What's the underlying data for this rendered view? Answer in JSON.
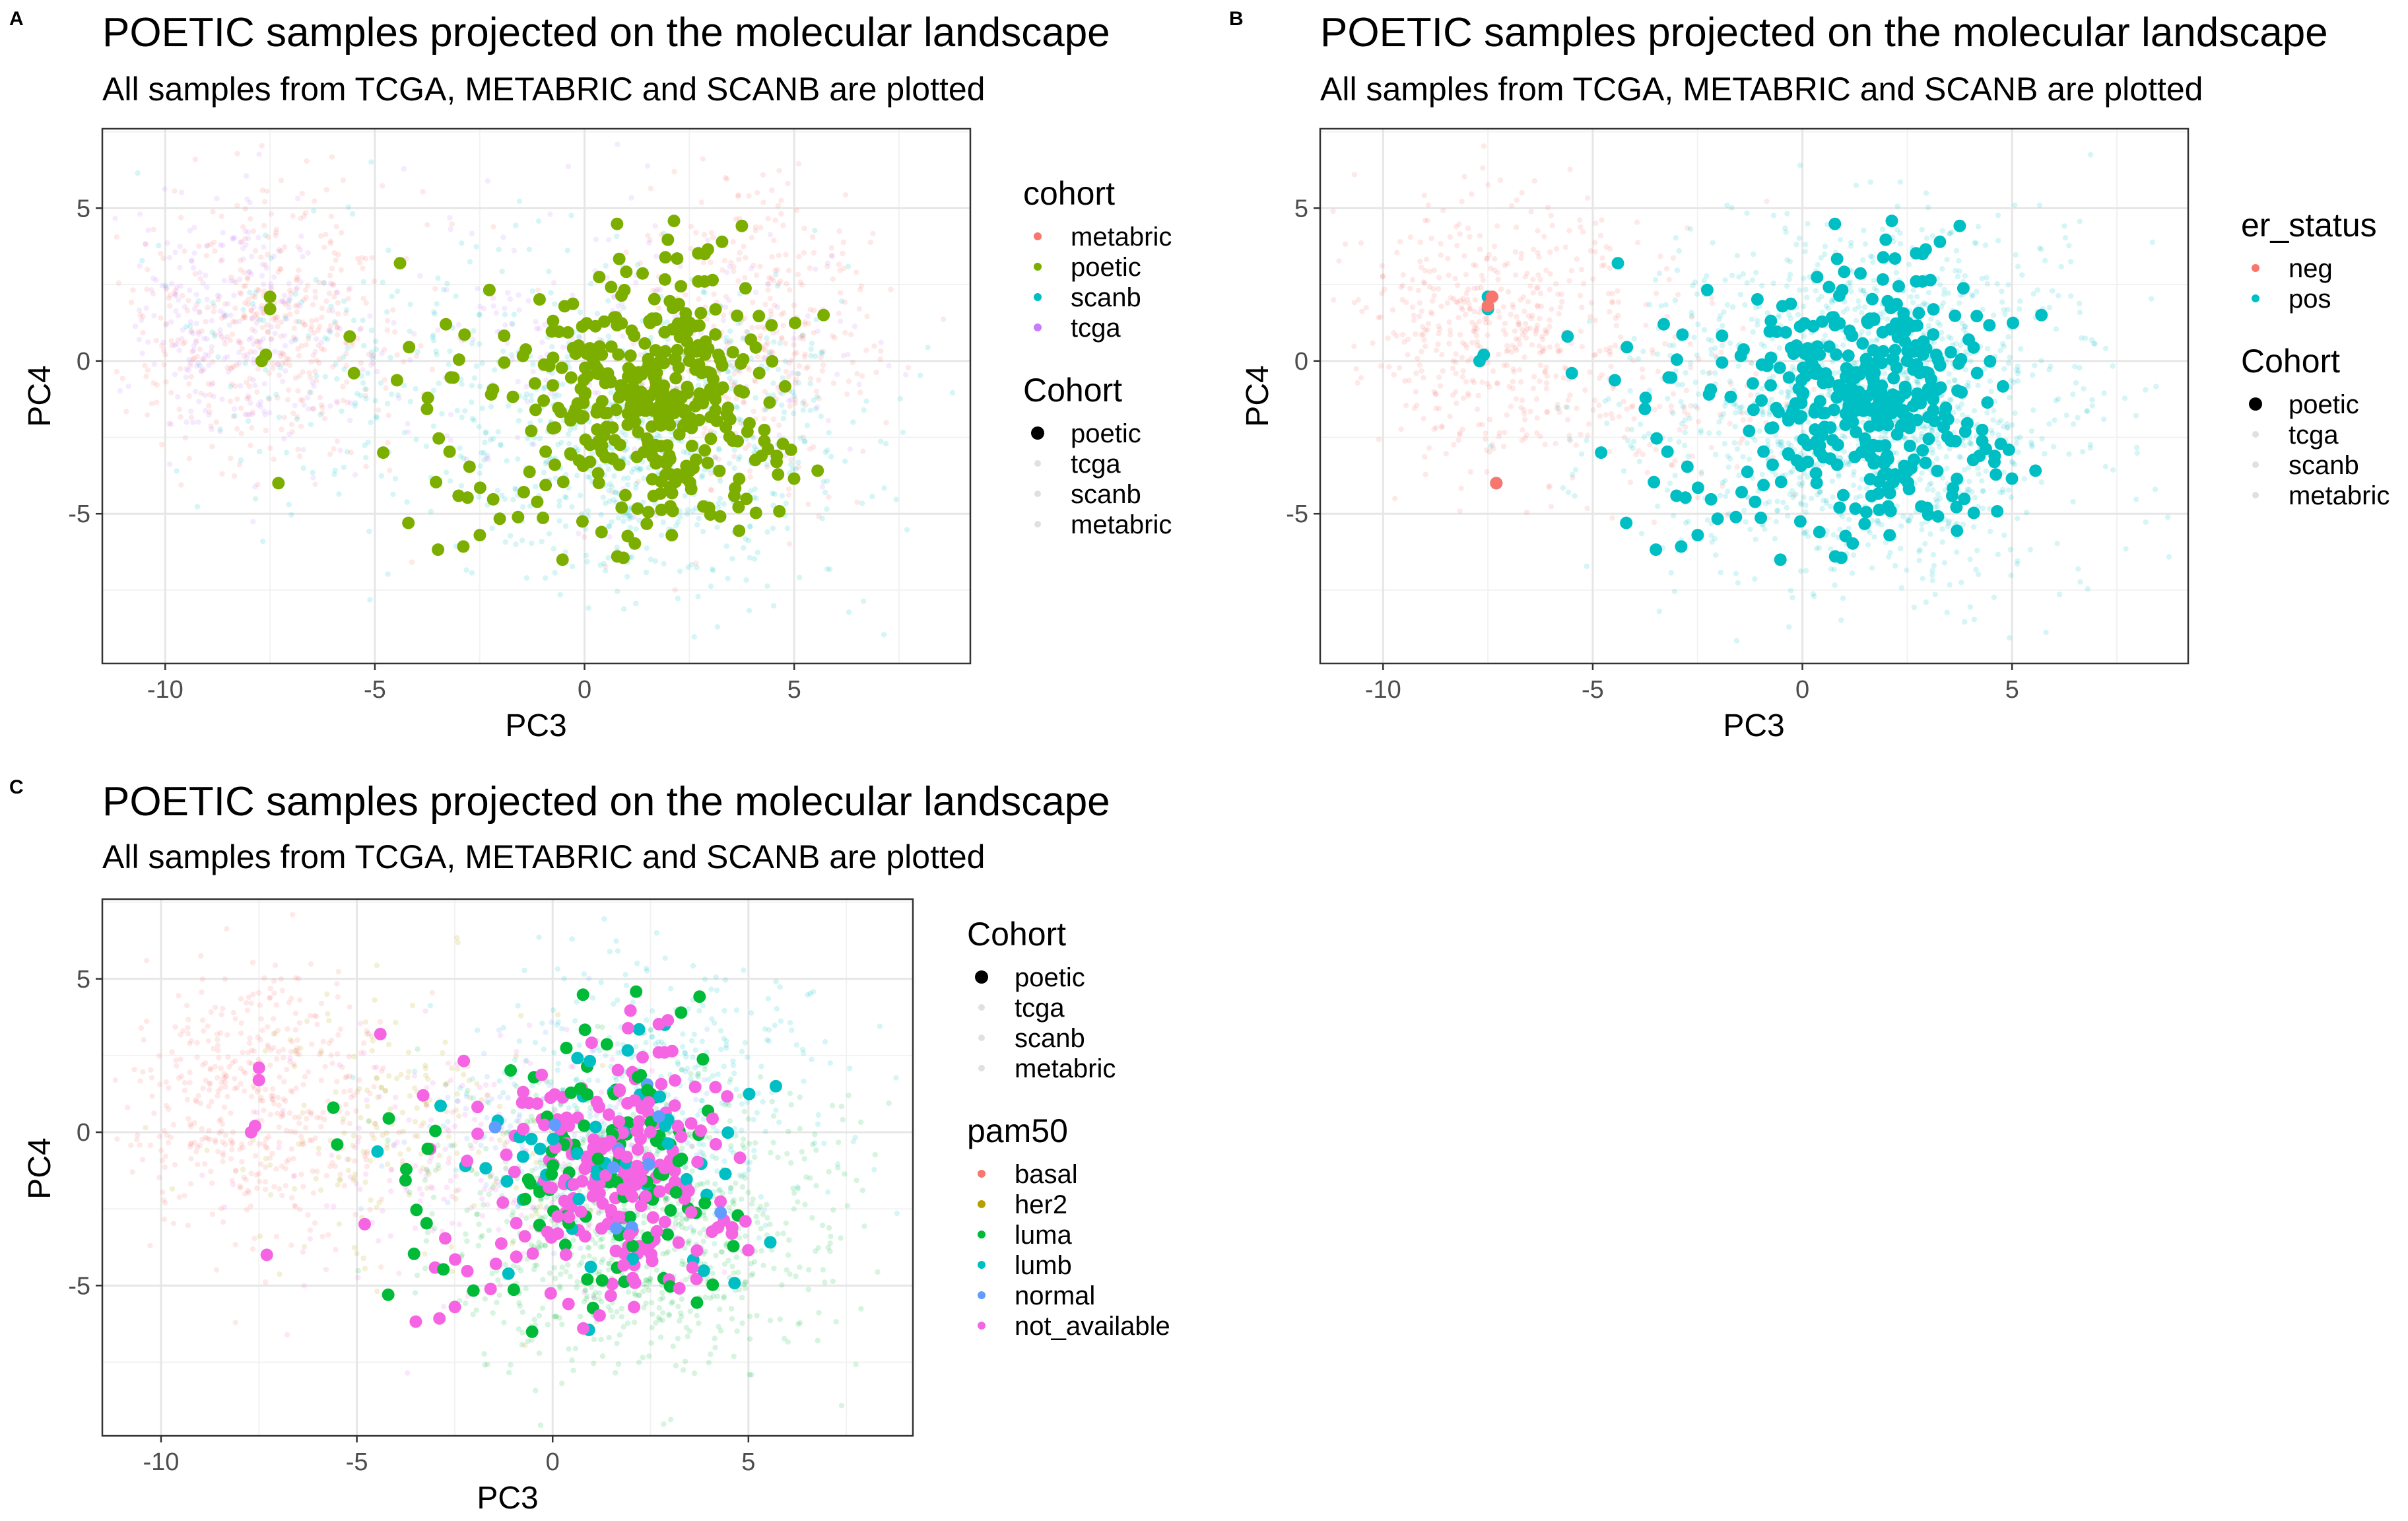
{
  "chart_data": [
    {
      "panel": "A",
      "type": "scatter",
      "title": "POETIC samples projected on the molecular landscape",
      "subtitle": "All samples from TCGA, METABRIC and SCANB are plotted",
      "xlabel": "PC3",
      "ylabel": "PC4",
      "xlim": [
        -11.5,
        9.2
      ],
      "ylim": [
        -9.9,
        7.6
      ],
      "x_ticks": [
        -10,
        -5,
        0,
        5
      ],
      "y_ticks": [
        -5,
        0,
        5
      ],
      "grid": true,
      "color_legend": {
        "title": "cohort",
        "entries": [
          {
            "label": "metabric",
            "color": "#F8766D"
          },
          {
            "label": "poetic",
            "color": "#7CAE00"
          },
          {
            "label": "scanb",
            "color": "#00BFC4"
          },
          {
            "label": "tcga",
            "color": "#C77CFF"
          }
        ]
      },
      "shape_legend": {
        "title": "Cohort",
        "entries": [
          {
            "label": "poetic",
            "alpha": 1.0,
            "size": "large"
          },
          {
            "label": "tcga",
            "alpha": 0.12,
            "size": "small"
          },
          {
            "label": "scanb",
            "alpha": 0.12,
            "size": "small"
          },
          {
            "label": "metabric",
            "alpha": 0.12,
            "size": "small"
          }
        ]
      },
      "poetic_color": "#7CAE00"
    },
    {
      "panel": "B",
      "type": "scatter",
      "title": "POETIC samples projected on the molecular landscape",
      "subtitle": "All samples from TCGA, METABRIC and SCANB are plotted",
      "xlabel": "PC3",
      "ylabel": "PC4",
      "xlim": [
        -11.5,
        9.2
      ],
      "ylim": [
        -9.9,
        7.6
      ],
      "x_ticks": [
        -10,
        -5,
        0,
        5
      ],
      "y_ticks": [
        -5,
        0,
        5
      ],
      "grid": true,
      "color_legend": {
        "title": "er_status",
        "entries": [
          {
            "label": "neg",
            "color": "#F8766D"
          },
          {
            "label": "pos",
            "color": "#00BFC4"
          }
        ]
      },
      "shape_legend": {
        "title": "Cohort",
        "entries": [
          {
            "label": "poetic",
            "alpha": 1.0,
            "size": "large"
          },
          {
            "label": "tcga",
            "alpha": 0.12,
            "size": "small"
          },
          {
            "label": "scanb",
            "alpha": 0.12,
            "size": "small"
          },
          {
            "label": "metabric",
            "alpha": 0.12,
            "size": "small"
          }
        ]
      },
      "poetic_color": "#00BFC4",
      "highlight_points": [
        {
          "x": -7.4,
          "y": 2.1,
          "color": "#F8766D"
        },
        {
          "x": -7.5,
          "y": 1.8,
          "color": "#F8766D"
        },
        {
          "x": -7.3,
          "y": -4.0,
          "color": "#F8766D"
        }
      ]
    },
    {
      "panel": "C",
      "type": "scatter",
      "title": "POETIC samples projected on the molecular landscape",
      "subtitle": "All samples from TCGA, METABRIC and SCANB are plotted",
      "xlabel": "PC3",
      "ylabel": "PC4",
      "xlim": [
        -11.5,
        9.2
      ],
      "ylim": [
        -9.9,
        7.6
      ],
      "x_ticks": [
        -10,
        -5,
        0,
        5
      ],
      "y_ticks": [
        -5,
        0,
        5
      ],
      "grid": true,
      "shape_legend": {
        "title": "Cohort",
        "entries": [
          {
            "label": "poetic",
            "alpha": 1.0,
            "size": "large"
          },
          {
            "label": "tcga",
            "alpha": 0.12,
            "size": "small"
          },
          {
            "label": "scanb",
            "alpha": 0.12,
            "size": "small"
          },
          {
            "label": "metabric",
            "alpha": 0.12,
            "size": "small"
          }
        ]
      },
      "color_legend": {
        "title": "pam50",
        "entries": [
          {
            "label": "basal",
            "color": "#F8766D"
          },
          {
            "label": "her2",
            "color": "#B79F00"
          },
          {
            "label": "luma",
            "color": "#00BA38"
          },
          {
            "label": "lumb",
            "color": "#00BFC4"
          },
          {
            "label": "normal",
            "color": "#619CFF"
          },
          {
            "label": "not_available",
            "color": "#F564E3"
          }
        ]
      },
      "poetic_mix": [
        {
          "color": "#F564E3",
          "weight": 0.55
        },
        {
          "color": "#00BA38",
          "weight": 0.3
        },
        {
          "color": "#00BFC4",
          "weight": 0.12
        },
        {
          "color": "#619CFF",
          "weight": 0.03
        }
      ]
    }
  ],
  "panel_tags": [
    "A",
    "B",
    "C"
  ]
}
